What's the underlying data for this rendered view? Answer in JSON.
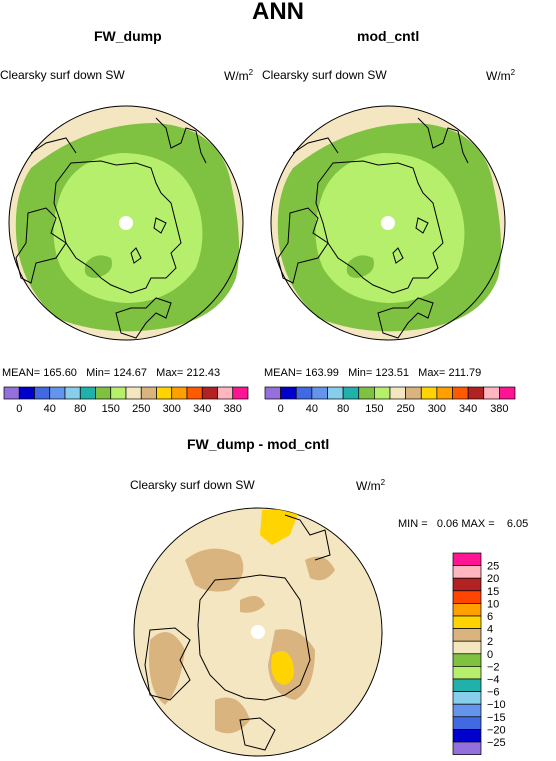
{
  "title": "ANN",
  "panels": [
    {
      "name": "FW_dump",
      "variable": "Clearsky surf down SW",
      "units": "W/m",
      "units_sup": "2",
      "mean_label": "MEAN=",
      "mean": "165.60",
      "min_label": "Min=",
      "min": "124.67",
      "max_label": "Max=",
      "max": "212.43"
    },
    {
      "name": "mod_cntl",
      "variable": "Clearsky surf down SW",
      "units": "W/m",
      "units_sup": "2",
      "mean_label": "MEAN=",
      "mean": "163.99",
      "min_label": "Min=",
      "min": "123.51",
      "max_label": "Max=",
      "max": "211.79"
    }
  ],
  "abs_colorbar": {
    "colors": [
      "#9370db",
      "#0000cd",
      "#4169e1",
      "#6495ed",
      "#87ceeb",
      "#20b2aa",
      "#7fc241",
      "#b6ef6b",
      "#f5e6c2",
      "#d9b47f",
      "#ffd400",
      "#ff9f00",
      "#ff5a00",
      "#b22222",
      "#ffb6c1",
      "#ff1493"
    ],
    "labels": [
      "0",
      "40",
      "80",
      "150",
      "250",
      "300",
      "340",
      "380"
    ]
  },
  "diff": {
    "title": "FW_dump - mod_cntl",
    "variable": "Clearsky surf down SW",
    "units": "W/m",
    "units_sup": "2",
    "min_label": "MIN =",
    "min": "0.06",
    "max_label": "MAX =",
    "max": "6.05",
    "colors": [
      "#ff1493",
      "#ffb6c1",
      "#b22222",
      "#ff4500",
      "#ff9f00",
      "#ffd400",
      "#d9b47f",
      "#f5e6c2",
      "#7fc241",
      "#b6ef6b",
      "#20b2aa",
      "#87ceeb",
      "#6495ed",
      "#4169e1",
      "#0000cd",
      "#9370db"
    ],
    "labels": [
      "25",
      "20",
      "15",
      "10",
      "6",
      "4",
      "2",
      "0",
      "−2",
      "−4",
      "−6",
      "−10",
      "−15",
      "−20",
      "−25"
    ]
  }
}
